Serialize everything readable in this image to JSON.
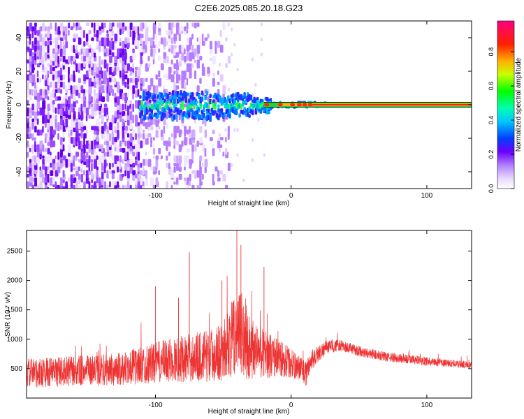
{
  "figure": {
    "title": "C2E6.2025.085.20.18.G23"
  },
  "chart_data": [
    {
      "type": "heatmap",
      "xlabel": "Height of straight line (km)",
      "ylabel": "Frequency (Hz)",
      "xlim": [
        -195,
        133
      ],
      "ylim": [
        -50,
        50
      ],
      "xticks": [
        -100,
        0,
        100
      ],
      "yticks": [
        -40,
        -20,
        0,
        20,
        40
      ],
      "colorbar": {
        "label": "Normalized spectral amplitude",
        "range": [
          0,
          0.98
        ],
        "ticks": [
          0.0,
          0.2,
          0.4,
          0.6,
          0.8
        ],
        "colormap": "white-purple-blue-cyan-green-yellow-red-magenta"
      },
      "description_values": {
        "noise_region_x": [
          -195,
          -55
        ],
        "concentrated_band_x": [
          -112,
          133
        ],
        "band_center_freq": 0
      }
    },
    {
      "type": "line",
      "xlabel": "Height of straight line (km)",
      "ylabel": "SNR (10 * v/v)",
      "xlim": [
        -195,
        133
      ],
      "ylim": [
        0,
        2850
      ],
      "xticks": [
        -100,
        0,
        100
      ],
      "yticks": [
        500,
        1000,
        1500,
        2000,
        2500
      ],
      "series": [
        {
          "color": "#ee3333",
          "envelope_x": [
            -195,
            -160,
            -130,
            -110,
            -90,
            -70,
            -60,
            -50,
            -42,
            -38,
            -32,
            -25,
            -15,
            -5,
            0,
            8,
            10,
            15,
            25,
            35,
            50,
            70,
            90,
            110,
            133
          ],
          "envelope_mean": [
            420,
            460,
            480,
            560,
            640,
            700,
            720,
            800,
            1050,
            1100,
            900,
            800,
            720,
            650,
            580,
            500,
            380,
            650,
            850,
            900,
            800,
            700,
            650,
            600,
            560
          ],
          "envelope_halfwidth": [
            250,
            260,
            280,
            320,
            380,
            420,
            450,
            500,
            700,
            800,
            600,
            450,
            380,
            300,
            250,
            200,
            250,
            180,
            120,
            100,
            90,
            80,
            80,
            70,
            60
          ],
          "peaks": [
            {
              "x": -40,
              "y": 2850
            },
            {
              "x": -37,
              "y": 2600
            },
            {
              "x": -75,
              "y": 2480
            },
            {
              "x": -20,
              "y": 2230
            },
            {
              "x": -51,
              "y": 2000
            },
            {
              "x": -100,
              "y": 1900
            },
            {
              "x": -83,
              "y": 1700
            }
          ]
        }
      ]
    }
  ]
}
